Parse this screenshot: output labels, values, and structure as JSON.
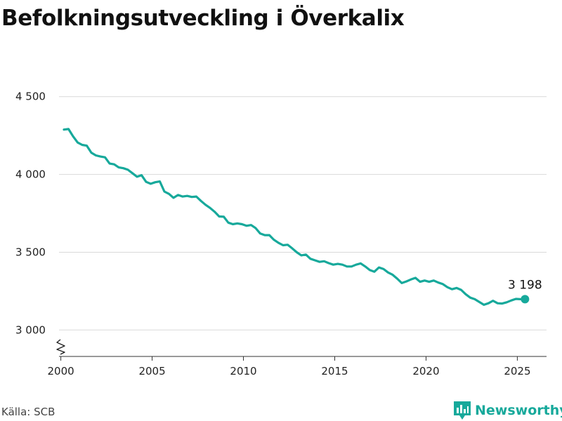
{
  "title": "Befolkningsutveckling i Överkalix",
  "source": "Källa: SCB",
  "brand": {
    "name": "Newsworthy",
    "icon": "newsworthy-logo-icon"
  },
  "colors": {
    "line": "#17a99b",
    "grid": "#d9d9d9",
    "axis": "#333333",
    "brand": "#17a99b"
  },
  "chart_data": {
    "type": "line",
    "title": "Befolkningsutveckling i Överkalix",
    "xlabel": "",
    "ylabel": "",
    "xlim": [
      1999.9,
      2026.6
    ],
    "ylim": [
      2830,
      4580
    ],
    "xticks": [
      2000,
      2005,
      2010,
      2015,
      2020,
      2025
    ],
    "xtick_labels": [
      "2000",
      "2005",
      "2010",
      "2015",
      "2020",
      "2025"
    ],
    "yticks": [
      3000,
      3500,
      4000,
      4500
    ],
    "ytick_labels": [
      "3 000",
      "3 500",
      "4 000",
      "4 500"
    ],
    "y_axis_break": true,
    "grid": "horizontal",
    "end_label": "3 198",
    "series": [
      {
        "x": [
          2000.17,
          2000.42,
          2000.67,
          2000.92,
          2001.17,
          2001.42,
          2001.67,
          2001.92,
          2002.17,
          2002.42,
          2002.67,
          2002.92,
          2003.17,
          2003.42,
          2003.67,
          2003.92,
          2004.17,
          2004.42,
          2004.67,
          2004.92,
          2005.17,
          2005.42,
          2005.67,
          2005.92,
          2006.17,
          2006.42,
          2006.67,
          2006.92,
          2007.17,
          2007.42,
          2007.67,
          2007.92,
          2008.17,
          2008.42,
          2008.67,
          2008.92,
          2009.17,
          2009.42,
          2009.67,
          2009.92,
          2010.17,
          2010.42,
          2010.67,
          2010.92,
          2011.17,
          2011.42,
          2011.67,
          2011.92,
          2012.17,
          2012.42,
          2012.67,
          2012.92,
          2013.17,
          2013.42,
          2013.67,
          2013.92,
          2014.17,
          2014.42,
          2014.67,
          2014.92,
          2015.17,
          2015.42,
          2015.67,
          2015.92,
          2016.17,
          2016.42,
          2016.67,
          2016.92,
          2017.17,
          2017.42,
          2017.67,
          2017.92,
          2018.17,
          2018.42,
          2018.67,
          2018.92,
          2019.17,
          2019.42,
          2019.67,
          2019.92,
          2020.17,
          2020.42,
          2020.67,
          2020.92,
          2021.17,
          2021.42,
          2021.67,
          2021.92,
          2022.17,
          2022.42,
          2022.67,
          2022.92,
          2023.17,
          2023.42,
          2023.67,
          2023.92,
          2024.17,
          2024.42,
          2024.67,
          2024.92,
          2025.17,
          2025.42
        ],
        "y": [
          4288,
          4292,
          4245,
          4205,
          4190,
          4185,
          4140,
          4122,
          4115,
          4110,
          4070,
          4065,
          4045,
          4040,
          4030,
          4008,
          3985,
          3995,
          3952,
          3940,
          3950,
          3955,
          3890,
          3875,
          3850,
          3868,
          3858,
          3862,
          3855,
          3858,
          3830,
          3805,
          3785,
          3760,
          3730,
          3728,
          3690,
          3680,
          3685,
          3680,
          3670,
          3675,
          3655,
          3620,
          3610,
          3610,
          3580,
          3560,
          3545,
          3548,
          3525,
          3500,
          3480,
          3485,
          3458,
          3448,
          3438,
          3442,
          3430,
          3420,
          3425,
          3420,
          3408,
          3408,
          3420,
          3428,
          3408,
          3385,
          3375,
          3402,
          3392,
          3370,
          3355,
          3330,
          3302,
          3312,
          3325,
          3335,
          3310,
          3318,
          3310,
          3318,
          3305,
          3295,
          3275,
          3262,
          3270,
          3258,
          3230,
          3208,
          3198,
          3180,
          3162,
          3172,
          3188,
          3172,
          3170,
          3178,
          3190,
          3200,
          3198,
          3198
        ]
      }
    ]
  }
}
